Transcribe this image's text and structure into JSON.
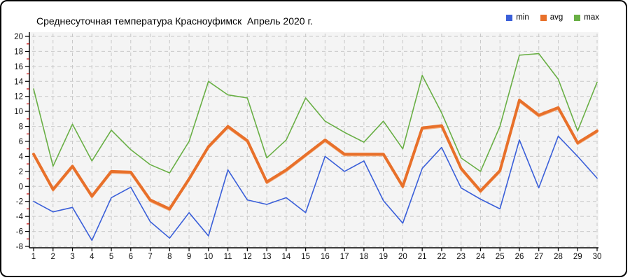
{
  "title": "Среднесуточная температура Красноуфимск  Апрель 2020 г.",
  "colors": {
    "background": "#ffffff",
    "frame_border": "#000000",
    "plot_bg": "#f4f4f4",
    "grid": "#c8c8c8",
    "axis": "#000000",
    "minor_tick": "#cc0000",
    "tick_label": "#111111"
  },
  "chart_data": {
    "type": "line",
    "title": "Среднесуточная температура Красноуфимск  Апрель 2020 г.",
    "xlabel": "",
    "ylabel": "",
    "x": [
      1,
      2,
      3,
      4,
      5,
      6,
      7,
      8,
      9,
      10,
      11,
      12,
      13,
      14,
      15,
      16,
      17,
      18,
      19,
      20,
      21,
      22,
      23,
      24,
      25,
      26,
      27,
      28,
      29,
      30
    ],
    "ylim": [
      -8,
      20
    ],
    "ytick_step": 2,
    "grid": "dashed",
    "legend_position": "top-right",
    "series": [
      {
        "name": "min",
        "color": "#3a5fd9",
        "width": 1.6,
        "values": [
          -2.0,
          -3.4,
          -2.8,
          -7.2,
          -1.5,
          -0.1,
          -4.7,
          -6.9,
          -3.5,
          -6.6,
          2.2,
          -1.8,
          -2.4,
          -1.5,
          -3.5,
          4.0,
          2.0,
          3.4,
          -1.9,
          -4.9,
          2.4,
          5.2,
          -0.2,
          -1.7,
          -3.0,
          6.2,
          -0.2,
          6.7,
          4.0,
          1.1
        ]
      },
      {
        "name": "avg",
        "color": "#e8702a",
        "width": 4,
        "halo": "#f4ad7e",
        "values": [
          4.3,
          -0.4,
          2.7,
          -1.3,
          2.0,
          1.9,
          -1.8,
          -3.0,
          1.0,
          5.3,
          8.0,
          6.1,
          0.6,
          2.2,
          4.2,
          6.2,
          4.3,
          4.3,
          4.3,
          0.0,
          7.8,
          8.1,
          2.4,
          -0.6,
          2.1,
          11.5,
          9.5,
          10.5,
          5.8,
          7.4
        ]
      },
      {
        "name": "max",
        "color": "#69af45",
        "width": 1.6,
        "values": [
          13.0,
          2.7,
          8.3,
          3.4,
          7.5,
          4.9,
          2.9,
          1.8,
          6.0,
          14.0,
          12.2,
          11.8,
          3.8,
          6.2,
          11.8,
          8.7,
          7.2,
          5.9,
          8.7,
          5.0,
          14.8,
          9.8,
          3.8,
          2.0,
          8.0,
          17.5,
          17.7,
          14.3,
          7.4,
          13.9
        ]
      }
    ]
  }
}
